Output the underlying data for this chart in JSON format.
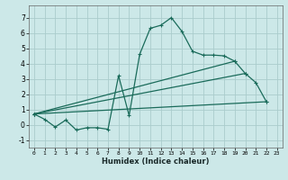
{
  "xlabel": "Humidex (Indice chaleur)",
  "background_color": "#cce8e8",
  "grid_color": "#aacccc",
  "line_color": "#1a6b5a",
  "xlim": [
    -0.5,
    23.5
  ],
  "ylim": [
    -1.5,
    7.8
  ],
  "xticks": [
    0,
    1,
    2,
    3,
    4,
    5,
    6,
    7,
    8,
    9,
    10,
    11,
    12,
    13,
    14,
    15,
    16,
    17,
    18,
    19,
    20,
    21,
    22,
    23
  ],
  "yticks": [
    -1,
    0,
    1,
    2,
    3,
    4,
    5,
    6,
    7
  ],
  "series": [
    {
      "x": [
        0,
        1,
        2,
        3,
        4,
        5,
        6,
        7,
        8,
        9,
        10,
        11,
        12,
        13,
        14,
        15,
        16,
        17,
        18,
        19,
        20,
        21,
        22
      ],
      "y": [
        0.7,
        0.35,
        -0.15,
        0.3,
        -0.35,
        -0.2,
        -0.2,
        -0.3,
        3.2,
        0.6,
        4.6,
        6.3,
        6.5,
        7.0,
        6.1,
        4.8,
        4.55,
        4.55,
        4.5,
        4.15,
        3.35,
        2.75,
        1.5
      ]
    },
    {
      "x": [
        0,
        22
      ],
      "y": [
        0.7,
        1.5
      ]
    },
    {
      "x": [
        0,
        20
      ],
      "y": [
        0.7,
        3.35
      ]
    },
    {
      "x": [
        0,
        19
      ],
      "y": [
        0.7,
        4.15
      ]
    }
  ]
}
